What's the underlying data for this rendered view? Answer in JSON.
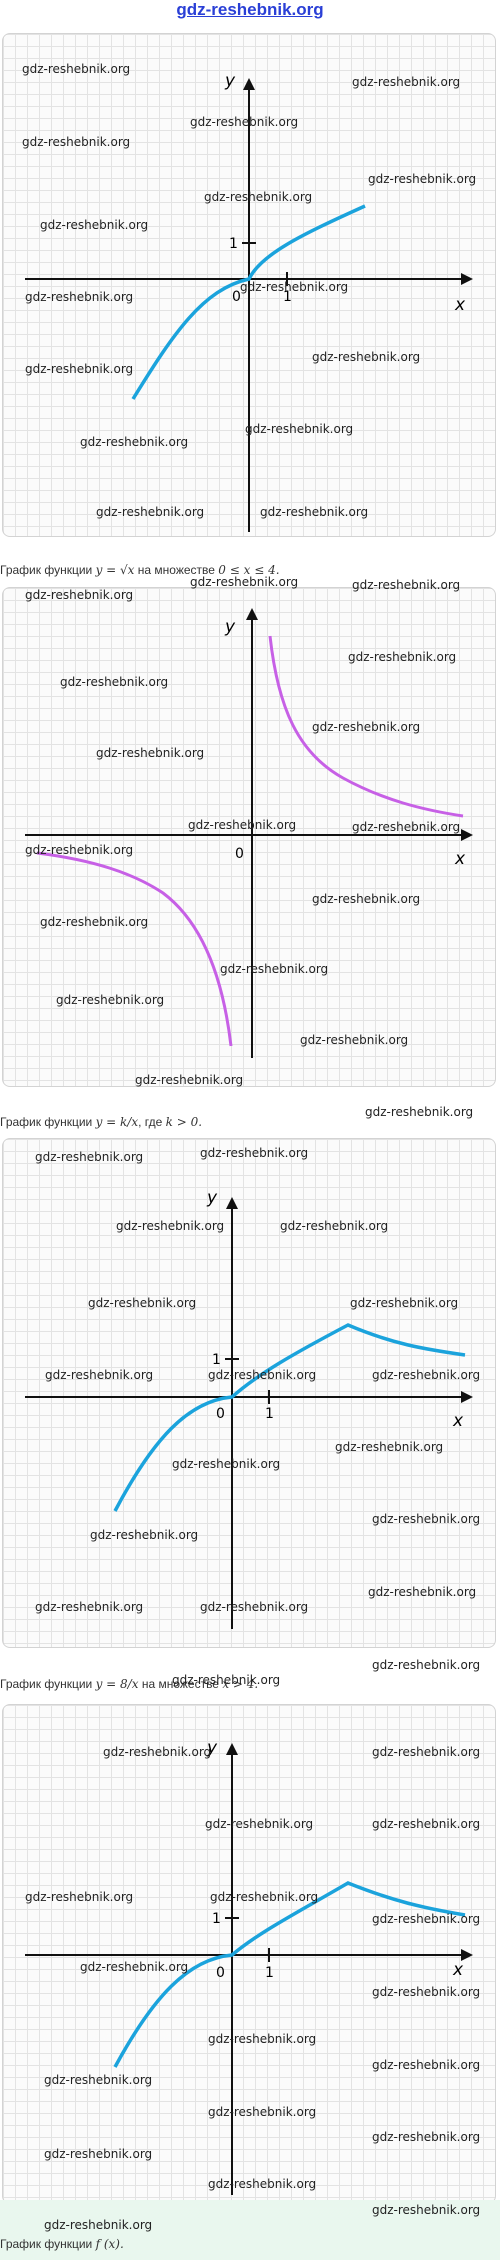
{
  "site": {
    "title": "gdz-reshebnik.org"
  },
  "watermark": "gdz-reshebnik.org",
  "colors": {
    "curve_blue": "#1ba3dc",
    "curve_violet": "#c760e6",
    "axis": "#111111"
  },
  "charts": [
    {
      "caption": {
        "pre": "График функции ",
        "func": "y = √x",
        "mid": " на множестве ",
        "set": "0 ≤ x ≤ 4."
      },
      "axes": {
        "x_label": "x",
        "y_label": "y",
        "origin": "0",
        "x_tick": "1",
        "y_tick": "1"
      },
      "chart_data": {
        "type": "line",
        "series": [
          {
            "function": "y = sqrt(x) for 0 <= x <= 4, y = -sqrt(-x) for x < 0",
            "x": [
              -3,
              -2,
              -1,
              -0.5,
              0,
              0.5,
              1,
              2,
              3,
              4
            ],
            "y": [
              -1.73,
              -1.41,
              -1,
              -0.71,
              0,
              0.71,
              1,
              1.41,
              1.73,
              2
            ]
          }
        ],
        "xlim": [
          -7,
          7
        ],
        "ylim": [
          -5,
          6
        ],
        "grid": true
      }
    },
    {
      "caption": {
        "pre": "График функции ",
        "func": "y = k/x",
        "mid": ", где ",
        "set": "k > 0."
      },
      "axes": {
        "x_label": "x",
        "y_label": "y",
        "origin": "0"
      },
      "chart_data": {
        "type": "line",
        "series": [
          {
            "function": "y = k/x",
            "branches": [
              {
                "x": [
                  0.5,
                  1,
                  1.5,
                  2,
                  3,
                  4,
                  5,
                  6
                ],
                "y": [
                  12,
                  6,
                  4,
                  3,
                  2,
                  1.5,
                  1.2,
                  1
                ]
              },
              {
                "x": [
                  -6,
                  -5,
                  -4,
                  -3,
                  -2,
                  -1.5,
                  -1,
                  -0.5
                ],
                "y": [
                  -1,
                  -1.2,
                  -1.5,
                  -2,
                  -3,
                  -4,
                  -6,
                  -12
                ]
              }
            ]
          }
        ],
        "xlim": [
          -7,
          7
        ],
        "ylim": [
          -12,
          12
        ],
        "grid": true
      }
    },
    {
      "caption": {
        "pre": "График функции ",
        "func": "y = 8/x",
        "mid": " на множестве ",
        "set": "x > 4."
      },
      "axes": {
        "x_label": "x",
        "y_label": "y",
        "origin": "0",
        "x_tick": "1",
        "y_tick": "1"
      },
      "chart_data": {
        "type": "line",
        "series": [
          {
            "function": "y = sqrt(x) for x <= 4, y = 8/x for x > 4",
            "x": [
              -3,
              -2,
              -1,
              0,
              1,
              2,
              3,
              4,
              5,
              6,
              7
            ],
            "y": [
              -3.2,
              -2.2,
              -1.1,
              0,
              1,
              1.41,
              1.73,
              2,
              1.6,
              1.33,
              1.14
            ]
          }
        ],
        "xlim": [
          -6,
          7
        ],
        "ylim": [
          -6,
          6
        ],
        "grid": true
      }
    },
    {
      "caption": {
        "pre": "График функции ",
        "func": "f (x).",
        "mid": "",
        "set": ""
      },
      "axes": {
        "x_label": "x",
        "y_label": "y",
        "origin": "0",
        "x_tick": "1",
        "y_tick": "1"
      },
      "chart_data": {
        "type": "line",
        "series": [
          {
            "function": "f(x)",
            "x": [
              -3,
              -2,
              -1,
              0,
              1,
              2,
              3,
              4,
              5,
              6,
              7
            ],
            "y": [
              -3.2,
              -2.2,
              -1.1,
              0,
              1,
              1.41,
              1.73,
              2,
              1.6,
              1.33,
              1.14
            ]
          }
        ],
        "xlim": [
          -6,
          7
        ],
        "ylim": [
          -6,
          6
        ],
        "grid": true
      }
    }
  ]
}
